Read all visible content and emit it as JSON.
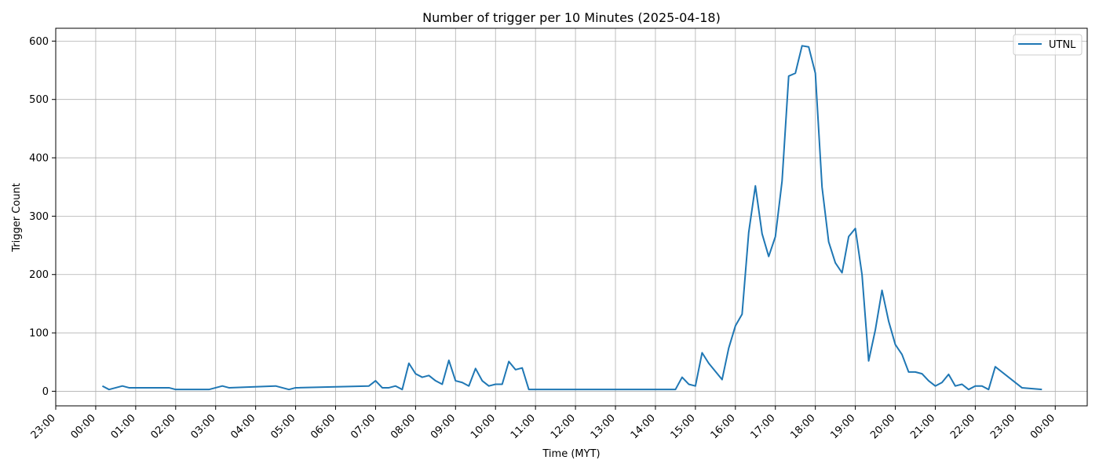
{
  "chart_data": {
    "type": "line",
    "title": "Number of trigger per 10 Minutes (2025-04-18)",
    "xlabel": "Time (MYT)",
    "ylabel": "Trigger Count",
    "x_unit": "hours since midnight MYT (2025-04-18)",
    "xlim": [
      -1.0,
      24.8
    ],
    "ylim": [
      -25,
      622
    ],
    "x_tick_values": [
      -1,
      0,
      1,
      2,
      3,
      4,
      5,
      6,
      7,
      8,
      9,
      10,
      11,
      12,
      13,
      14,
      15,
      16,
      17,
      18,
      19,
      20,
      21,
      22,
      23,
      24
    ],
    "x_tick_labels": [
      "23:00",
      "00:00",
      "01:00",
      "02:00",
      "03:00",
      "04:00",
      "05:00",
      "06:00",
      "07:00",
      "08:00",
      "09:00",
      "10:00",
      "11:00",
      "12:00",
      "13:00",
      "14:00",
      "15:00",
      "16:00",
      "17:00",
      "18:00",
      "19:00",
      "20:00",
      "21:00",
      "22:00",
      "23:00",
      "00:00"
    ],
    "y_ticks": [
      0,
      100,
      200,
      300,
      400,
      500,
      600
    ],
    "grid": true,
    "legend_position": "top-right",
    "series": [
      {
        "name": "UTNL",
        "color": "#1f77b4",
        "points": [
          [
            0.167,
            9
          ],
          [
            0.333,
            3
          ],
          [
            0.667,
            9
          ],
          [
            0.833,
            6
          ],
          [
            1.833,
            6
          ],
          [
            2.0,
            3
          ],
          [
            2.833,
            3
          ],
          [
            3.167,
            9
          ],
          [
            3.333,
            6
          ],
          [
            4.5,
            9
          ],
          [
            4.833,
            3
          ],
          [
            5.0,
            6
          ],
          [
            6.833,
            9
          ],
          [
            7.0,
            18
          ],
          [
            7.167,
            6
          ],
          [
            7.333,
            6
          ],
          [
            7.5,
            9
          ],
          [
            7.667,
            3
          ],
          [
            7.833,
            48
          ],
          [
            8.0,
            30
          ],
          [
            8.167,
            24
          ],
          [
            8.333,
            27
          ],
          [
            8.5,
            18
          ],
          [
            8.667,
            12
          ],
          [
            8.833,
            53
          ],
          [
            9.0,
            18
          ],
          [
            9.167,
            15
          ],
          [
            9.333,
            9
          ],
          [
            9.5,
            39
          ],
          [
            9.667,
            18
          ],
          [
            9.833,
            9
          ],
          [
            10.0,
            12
          ],
          [
            10.167,
            12
          ],
          [
            10.333,
            51
          ],
          [
            10.5,
            37
          ],
          [
            10.667,
            40
          ],
          [
            10.833,
            3
          ],
          [
            14.5,
            3
          ],
          [
            14.667,
            24
          ],
          [
            14.833,
            12
          ],
          [
            15.0,
            9
          ],
          [
            15.167,
            66
          ],
          [
            15.333,
            48
          ],
          [
            15.5,
            34
          ],
          [
            15.667,
            20
          ],
          [
            15.833,
            74
          ],
          [
            16.0,
            112
          ],
          [
            16.167,
            132
          ],
          [
            16.333,
            272
          ],
          [
            16.5,
            352
          ],
          [
            16.667,
            270
          ],
          [
            16.833,
            231
          ],
          [
            17.0,
            265
          ],
          [
            17.167,
            360
          ],
          [
            17.333,
            540
          ],
          [
            17.5,
            545
          ],
          [
            17.667,
            592
          ],
          [
            17.833,
            590
          ],
          [
            18.0,
            545
          ],
          [
            18.167,
            350
          ],
          [
            18.333,
            256
          ],
          [
            18.5,
            220
          ],
          [
            18.667,
            203
          ],
          [
            18.833,
            265
          ],
          [
            19.0,
            279
          ],
          [
            19.167,
            200
          ],
          [
            19.333,
            52
          ],
          [
            19.5,
            105
          ],
          [
            19.667,
            173
          ],
          [
            19.833,
            120
          ],
          [
            20.0,
            80
          ],
          [
            20.167,
            63
          ],
          [
            20.333,
            33
          ],
          [
            20.5,
            33
          ],
          [
            20.667,
            30
          ],
          [
            20.833,
            18
          ],
          [
            21.0,
            9
          ],
          [
            21.167,
            15
          ],
          [
            21.333,
            29
          ],
          [
            21.5,
            9
          ],
          [
            21.667,
            12
          ],
          [
            21.833,
            3
          ],
          [
            22.0,
            9
          ],
          [
            22.167,
            9
          ],
          [
            22.333,
            3
          ],
          [
            22.5,
            42
          ],
          [
            23.167,
            6
          ],
          [
            23.667,
            3
          ]
        ]
      }
    ]
  }
}
